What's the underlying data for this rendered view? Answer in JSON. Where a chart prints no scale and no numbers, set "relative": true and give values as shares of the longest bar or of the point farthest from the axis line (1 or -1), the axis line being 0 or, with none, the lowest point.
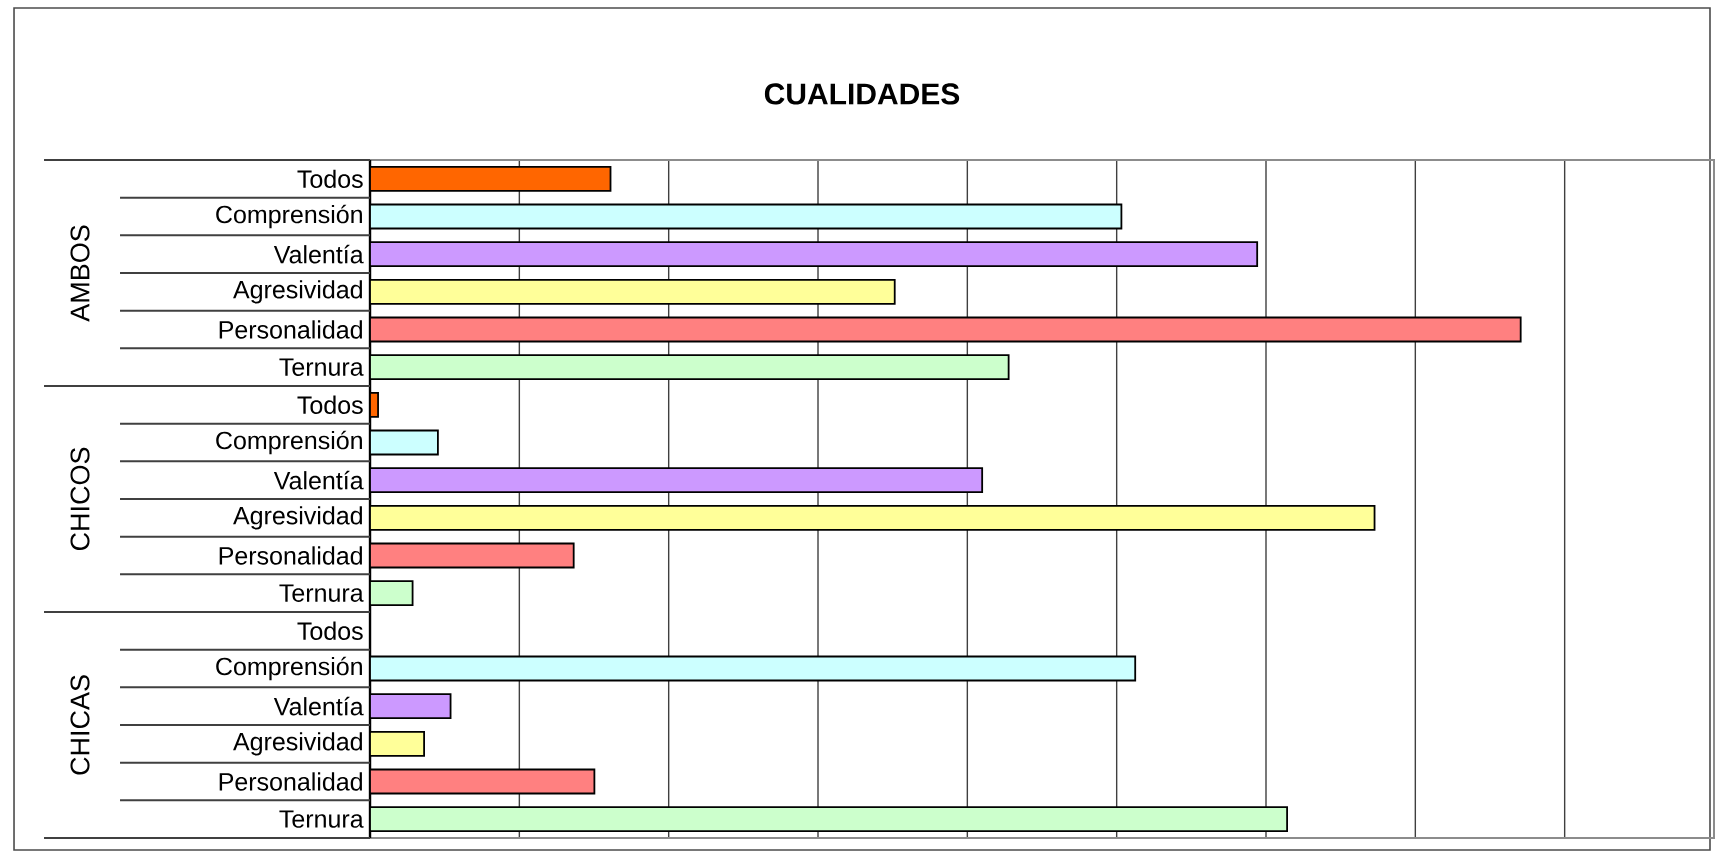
{
  "chart_data": {
    "type": "bar",
    "orientation": "horizontal",
    "relative": true,
    "title": "CUALIDADES",
    "categories": [
      "Todos",
      "Comprensión",
      "Valentía",
      "Agresividad",
      "Personalidad",
      "Ternura",
      "Todos",
      "Comprensión",
      "Valentía",
      "Agresividad",
      "Personalidad",
      "Ternura",
      "Todos",
      "Comprensión",
      "Valentía",
      "Agresividad",
      "Personalidad",
      "Ternura"
    ],
    "values": [
      0.209,
      0.653,
      0.771,
      0.456,
      1,
      0.555,
      0.007,
      0.059,
      0.532,
      0.873,
      0.177,
      0.037,
      0,
      0.665,
      0.07,
      0.047,
      0.195,
      0.797
    ],
    "colors": [
      "#ff6600",
      "#ccffff",
      "#cc99ff",
      "#ffff99",
      "#ff8080",
      "#ccffcc",
      "#ff6600",
      "#ccffff",
      "#cc99ff",
      "#ffff99",
      "#ff8080",
      "#ccffcc",
      "#ff6600",
      "#ccffff",
      "#cc99ff",
      "#ffff99",
      "#ff8080",
      "#ccffcc"
    ],
    "annotations": [
      "AMBOS",
      "CHICOS",
      "CHICAS"
    ],
    "grid": "x"
  }
}
